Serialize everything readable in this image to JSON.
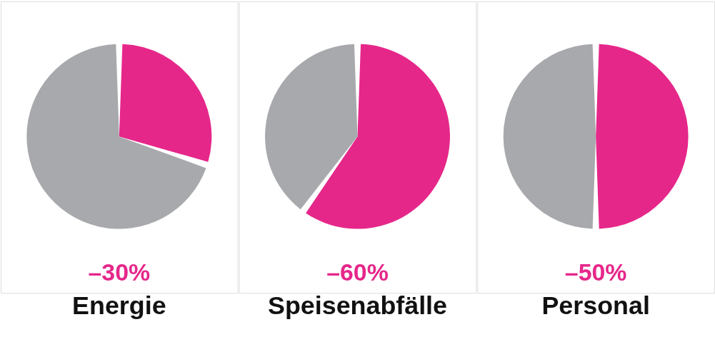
{
  "chart_data": [
    {
      "type": "pie",
      "title": "Energie",
      "categories": [
        null,
        null
      ],
      "values": [
        30,
        70
      ],
      "colors": [
        "#e6278a",
        "#a7a9ac"
      ],
      "annotations": [
        "–30%"
      ]
    },
    {
      "type": "pie",
      "title": "Speisenabfälle",
      "categories": [
        null,
        null
      ],
      "values": [
        60,
        40
      ],
      "colors": [
        "#e6278a",
        "#a7a9ac"
      ],
      "annotations": [
        "–60%"
      ]
    },
    {
      "type": "pie",
      "title": "Personal",
      "categories": [
        null,
        null
      ],
      "values": [
        50,
        50
      ],
      "colors": [
        "#e6278a",
        "#a7a9ac"
      ],
      "annotations": [
        "–50%"
      ]
    }
  ]
}
